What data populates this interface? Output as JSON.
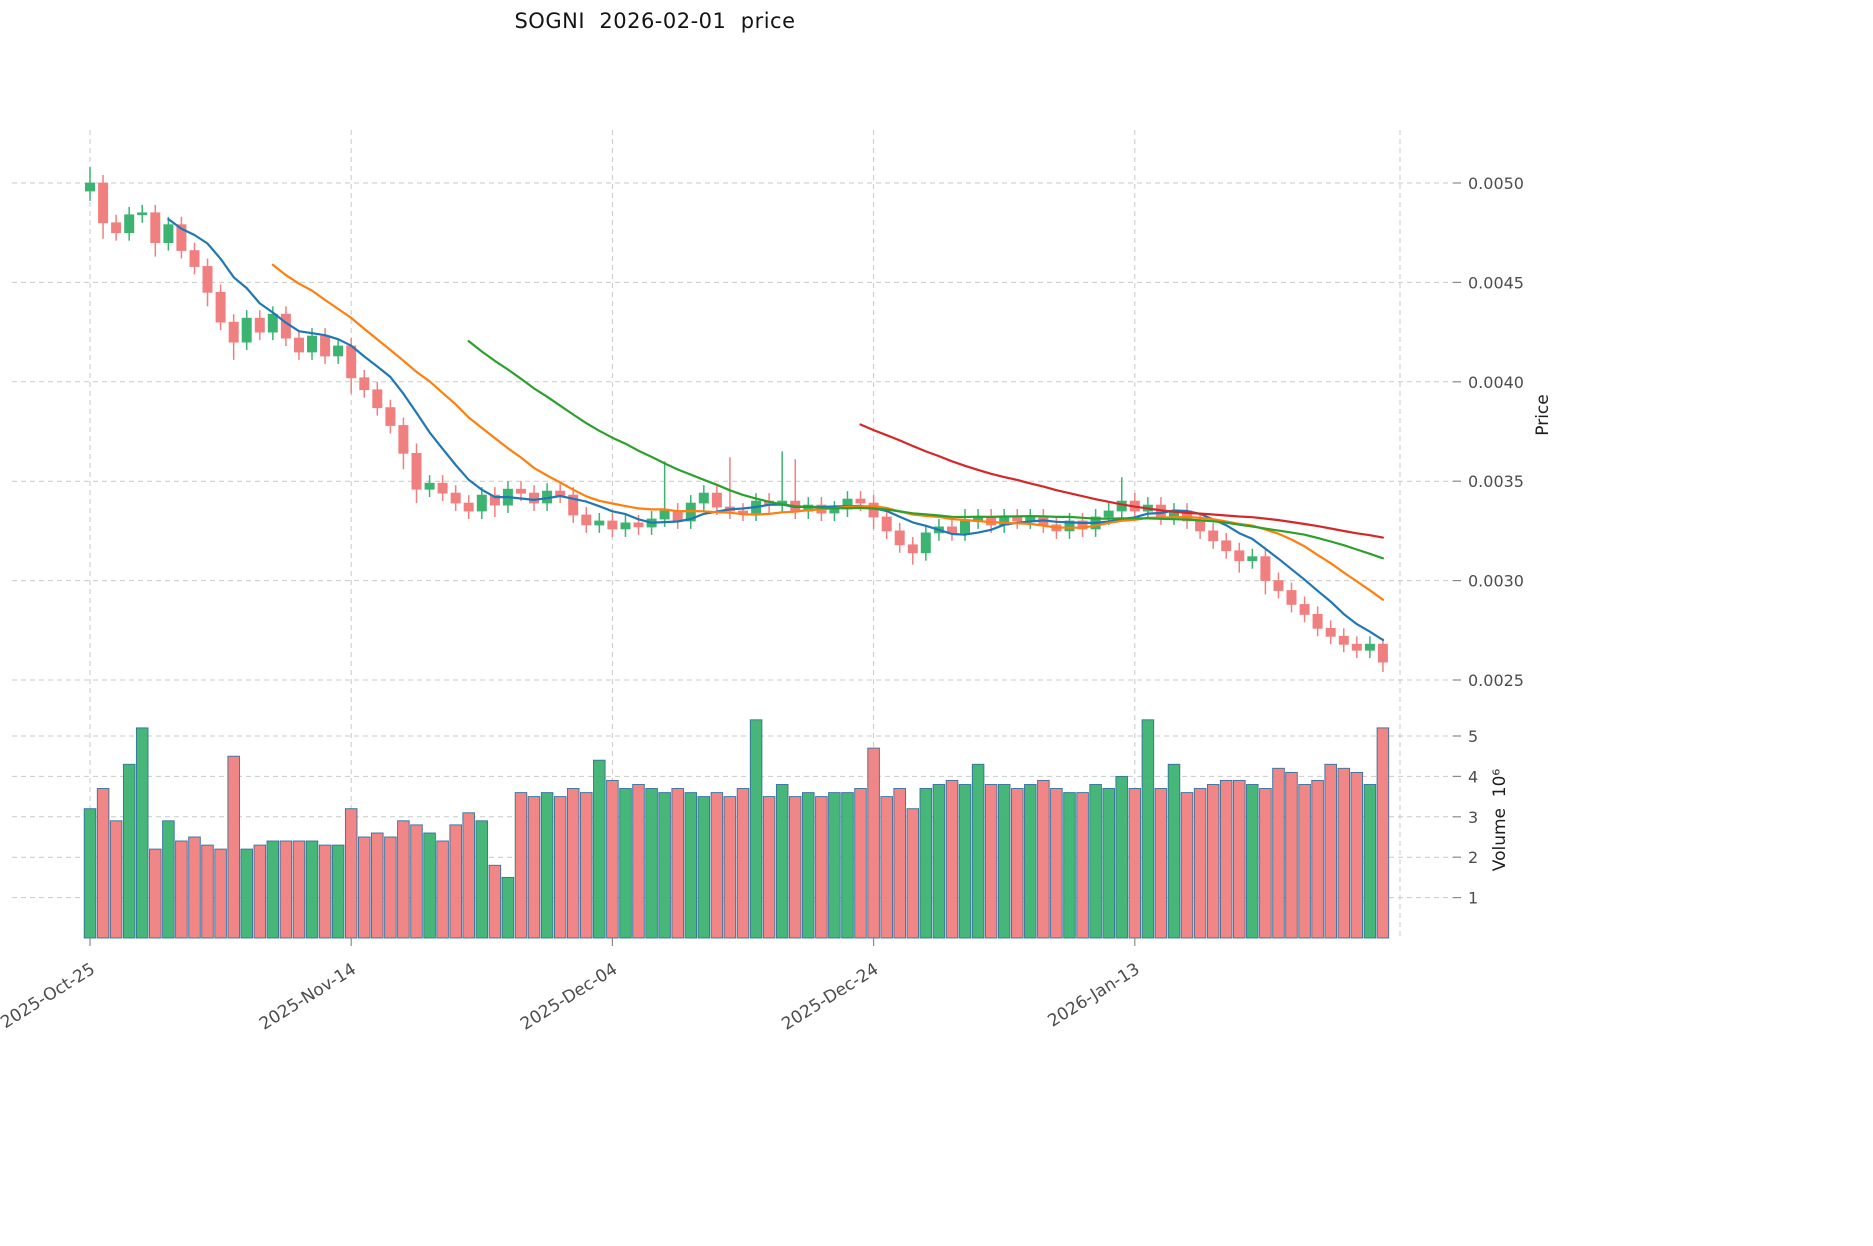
{
  "title": "SOGNI  2026-02-01  price",
  "axes": {
    "price_label": "Price",
    "volume_label": "Volume  10⁶"
  },
  "chart_data": {
    "type": "candlestick",
    "title": "SOGNI  2026-02-01  price",
    "subtitle": "",
    "legend": "none",
    "grid": "dashed",
    "x_ticks": [
      {
        "index": 0,
        "label": "2025-Oct-25"
      },
      {
        "index": 20,
        "label": "2025-Nov-14"
      },
      {
        "index": 40,
        "label": "2025-Dec-04"
      },
      {
        "index": 60,
        "label": "2025-Dec-24"
      },
      {
        "index": 80,
        "label": "2026-Jan-13"
      }
    ],
    "price_axis": {
      "label": "Price",
      "ticks": [
        0.0025,
        0.003,
        0.0035,
        0.004,
        0.0045,
        0.005
      ],
      "min": 0.0024,
      "max": 0.00525
    },
    "volume_axis": {
      "label": "Volume  10⁶",
      "ticks": [
        1,
        2,
        3,
        4,
        5
      ],
      "unit": 1000000
    },
    "colors": {
      "up": "#3CB371",
      "down": "#F08080",
      "volume_edge": "#35719e",
      "grid": "#c9c9c9",
      "ma_fast": "#1f77b4",
      "ma_mid": "#ff7f0e",
      "ma_slow": "#2ca02c",
      "ma_long": "#d62728"
    },
    "moving_averages": [
      {
        "window": 7,
        "color": "#1f77b4"
      },
      {
        "window": 15,
        "color": "#ff7f0e"
      },
      {
        "window": 30,
        "color": "#2ca02c"
      },
      {
        "window": 60,
        "color": "#d62728"
      }
    ],
    "candles": {
      "open": [
        0.00496,
        0.005,
        0.0048,
        0.00475,
        0.00484,
        0.00485,
        0.0047,
        0.00479,
        0.00466,
        0.00458,
        0.00445,
        0.0043,
        0.0042,
        0.00432,
        0.00425,
        0.00434,
        0.00422,
        0.00415,
        0.00423,
        0.00413,
        0.00418,
        0.00402,
        0.00396,
        0.00387,
        0.00378,
        0.00364,
        0.00346,
        0.00349,
        0.00344,
        0.00339,
        0.00335,
        0.00343,
        0.00338,
        0.00346,
        0.00344,
        0.00339,
        0.00345,
        0.00343,
        0.00333,
        0.00328,
        0.0033,
        0.00326,
        0.00329,
        0.00327,
        0.00331,
        0.00335,
        0.0033,
        0.00339,
        0.00344,
        0.00337,
        0.00335,
        0.00334,
        0.0034,
        0.00338,
        0.0034,
        0.00335,
        0.00338,
        0.00334,
        0.00336,
        0.00341,
        0.00339,
        0.00332,
        0.00325,
        0.00318,
        0.00314,
        0.00324,
        0.00327,
        0.00324,
        0.0033,
        0.00332,
        0.00328,
        0.00332,
        0.0033,
        0.00332,
        0.00328,
        0.00325,
        0.0033,
        0.00326,
        0.00332,
        0.00335,
        0.0034,
        0.00335,
        0.00338,
        0.00332,
        0.00335,
        0.0033,
        0.00325,
        0.0032,
        0.00315,
        0.0031,
        0.00312,
        0.003,
        0.00295,
        0.00288,
        0.00283,
        0.00276,
        0.00272,
        0.00268,
        0.00265,
        0.00268
      ],
      "high": [
        0.00508,
        0.00504,
        0.00484,
        0.00488,
        0.00489,
        0.00489,
        0.00483,
        0.00483,
        0.0047,
        0.00462,
        0.00449,
        0.00434,
        0.00436,
        0.00436,
        0.00438,
        0.00438,
        0.00426,
        0.00427,
        0.00427,
        0.00422,
        0.00422,
        0.00406,
        0.004,
        0.00391,
        0.00382,
        0.00369,
        0.00353,
        0.00353,
        0.00348,
        0.00343,
        0.00347,
        0.00347,
        0.0035,
        0.0035,
        0.00348,
        0.00349,
        0.00349,
        0.00347,
        0.00337,
        0.00334,
        0.00334,
        0.00333,
        0.00333,
        0.00335,
        0.0036,
        0.00339,
        0.00343,
        0.00348,
        0.00348,
        0.00362,
        0.00339,
        0.00344,
        0.00344,
        0.00365,
        0.00361,
        0.00342,
        0.00342,
        0.0034,
        0.00345,
        0.00345,
        0.00343,
        0.00336,
        0.00329,
        0.00322,
        0.00328,
        0.00331,
        0.00331,
        0.00336,
        0.00336,
        0.00336,
        0.00336,
        0.00336,
        0.00336,
        0.00336,
        0.00332,
        0.00334,
        0.00334,
        0.00336,
        0.00339,
        0.00352,
        0.00344,
        0.00342,
        0.00342,
        0.00339,
        0.00339,
        0.00334,
        0.00329,
        0.00324,
        0.00319,
        0.00316,
        0.00316,
        0.00304,
        0.00299,
        0.00292,
        0.00287,
        0.0028,
        0.00276,
        0.00272,
        0.00272,
        0.00271
      ],
      "low": [
        0.00491,
        0.00472,
        0.00471,
        0.00471,
        0.0048,
        0.00463,
        0.00466,
        0.00462,
        0.00454,
        0.00438,
        0.00426,
        0.00411,
        0.00416,
        0.00421,
        0.00421,
        0.00418,
        0.00411,
        0.00411,
        0.00409,
        0.00409,
        0.00394,
        0.00392,
        0.00383,
        0.00374,
        0.00356,
        0.00339,
        0.00342,
        0.0034,
        0.00335,
        0.00331,
        0.00331,
        0.00332,
        0.00334,
        0.0034,
        0.00335,
        0.00335,
        0.00339,
        0.00329,
        0.00324,
        0.00324,
        0.00322,
        0.00322,
        0.00323,
        0.00323,
        0.00327,
        0.00326,
        0.00326,
        0.00335,
        0.00333,
        0.00331,
        0.0033,
        0.0033,
        0.00334,
        0.00334,
        0.00331,
        0.00331,
        0.0033,
        0.0033,
        0.00332,
        0.00335,
        0.00326,
        0.00321,
        0.00314,
        0.00308,
        0.0031,
        0.0032,
        0.0032,
        0.0032,
        0.00326,
        0.00324,
        0.00324,
        0.00326,
        0.00326,
        0.00324,
        0.00321,
        0.00321,
        0.00322,
        0.00322,
        0.00328,
        0.00331,
        0.00331,
        0.00331,
        0.00328,
        0.00328,
        0.00326,
        0.00321,
        0.00316,
        0.00311,
        0.00304,
        0.00306,
        0.00293,
        0.00291,
        0.00284,
        0.00279,
        0.00272,
        0.00268,
        0.00264,
        0.00261,
        0.00261,
        0.00254
      ],
      "close": [
        0.005,
        0.0048,
        0.00475,
        0.00484,
        0.00485,
        0.0047,
        0.00479,
        0.00466,
        0.00458,
        0.00445,
        0.0043,
        0.0042,
        0.00432,
        0.00425,
        0.00434,
        0.00422,
        0.00415,
        0.00423,
        0.00413,
        0.00418,
        0.00402,
        0.00396,
        0.00387,
        0.00378,
        0.00364,
        0.00346,
        0.00349,
        0.00344,
        0.00339,
        0.00335,
        0.00343,
        0.00338,
        0.00346,
        0.00344,
        0.00339,
        0.00345,
        0.00343,
        0.00333,
        0.00328,
        0.0033,
        0.00326,
        0.00329,
        0.00327,
        0.00331,
        0.00335,
        0.0033,
        0.00339,
        0.00344,
        0.00337,
        0.00335,
        0.00334,
        0.0034,
        0.00338,
        0.0034,
        0.00335,
        0.00338,
        0.00334,
        0.00336,
        0.00341,
        0.00339,
        0.00332,
        0.00325,
        0.00318,
        0.00314,
        0.00324,
        0.00327,
        0.00324,
        0.0033,
        0.00332,
        0.00328,
        0.00332,
        0.0033,
        0.00332,
        0.00328,
        0.00325,
        0.0033,
        0.00326,
        0.00332,
        0.00335,
        0.0034,
        0.00335,
        0.00338,
        0.00332,
        0.00335,
        0.0033,
        0.00325,
        0.0032,
        0.00315,
        0.0031,
        0.00312,
        0.003,
        0.00295,
        0.00288,
        0.00283,
        0.00276,
        0.00272,
        0.00268,
        0.00265,
        0.00268,
        0.00259
      ]
    },
    "volumes_millions": [
      3.2,
      3.7,
      2.9,
      4.3,
      5.2,
      2.2,
      2.9,
      2.4,
      2.5,
      2.3,
      2.2,
      4.5,
      2.2,
      2.3,
      2.4,
      2.4,
      2.4,
      2.4,
      2.3,
      2.3,
      3.2,
      2.5,
      2.6,
      2.5,
      2.9,
      2.8,
      2.6,
      2.4,
      2.8,
      3.1,
      2.9,
      1.8,
      1.5,
      3.6,
      3.5,
      3.6,
      3.5,
      3.7,
      3.6,
      4.4,
      3.9,
      3.7,
      3.8,
      3.7,
      3.6,
      3.7,
      3.6,
      3.5,
      3.6,
      3.5,
      3.7,
      5.4,
      3.5,
      3.8,
      3.5,
      3.6,
      3.5,
      3.6,
      3.6,
      3.7,
      4.7,
      3.5,
      3.7,
      3.2,
      3.7,
      3.8,
      3.9,
      3.8,
      4.3,
      3.8,
      3.8,
      3.7,
      3.8,
      3.9,
      3.7,
      3.6,
      3.6,
      3.8,
      3.7,
      4.0,
      3.7,
      5.4,
      3.7,
      4.3,
      3.6,
      3.7,
      3.8,
      3.9,
      3.9,
      3.8,
      3.7,
      4.2,
      4.1,
      3.8,
      3.9,
      4.3,
      4.2,
      4.1,
      3.8,
      5.2
    ]
  }
}
